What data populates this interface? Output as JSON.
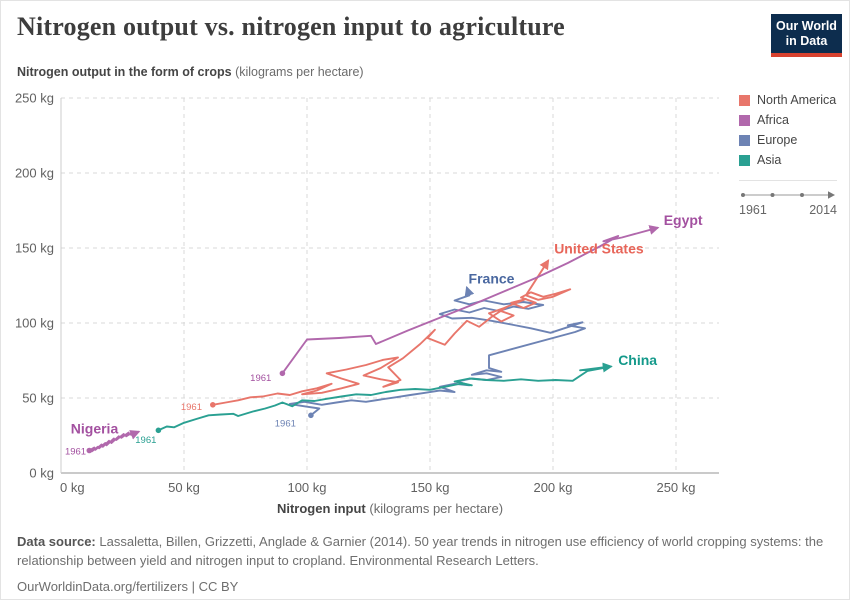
{
  "header": {
    "title": "Nitrogen output vs. nitrogen input to agriculture",
    "logo_line1": "Our World",
    "logo_line2": "in Data",
    "subtitle_bold": "Nitrogen output in the form of crops",
    "subtitle_normal": "(kilograms per hectare)"
  },
  "legend": {
    "items": [
      {
        "label": "North America",
        "color": "#e8766b"
      },
      {
        "label": "Africa",
        "color": "#b168ac"
      },
      {
        "label": "Europe",
        "color": "#6d83b4"
      },
      {
        "label": "Asia",
        "color": "#2aa092"
      }
    ],
    "timeline": {
      "start": "1961",
      "end": "2014"
    }
  },
  "chart_data": {
    "type": "line",
    "subtype": "connected-scatter",
    "title": "Nitrogen output vs. nitrogen input to agriculture",
    "xlabel_bold": "Nitrogen input",
    "xlabel_normal": "(kilograms per hectare)",
    "ylabel": "Nitrogen output in the form of crops (kilograms per hectare)",
    "xlim": [
      0,
      267
    ],
    "ylim": [
      0,
      253
    ],
    "grid": true,
    "time_range": [
      1961,
      2014
    ],
    "x_ticks": [
      {
        "v": 0,
        "label": "0 kg"
      },
      {
        "v": 50,
        "label": "50 kg"
      },
      {
        "v": 100,
        "label": "100 kg"
      },
      {
        "v": 150,
        "label": "150 kg"
      },
      {
        "v": 200,
        "label": "200 kg"
      },
      {
        "v": 250,
        "label": "250 kg"
      }
    ],
    "y_ticks": [
      {
        "v": 0,
        "label": "0 kg"
      },
      {
        "v": 50,
        "label": "50 kg"
      },
      {
        "v": 100,
        "label": "100 kg"
      },
      {
        "v": 150,
        "label": "150 kg"
      },
      {
        "v": 200,
        "label": "200 kg"
      },
      {
        "v": 250,
        "label": "250 kg"
      }
    ],
    "series": [
      {
        "name": "Nigeria",
        "region": "Africa",
        "color": "#b168ac",
        "points": [
          [
            11.5,
            15
          ],
          [
            13.5,
            17
          ],
          [
            12.5,
            14.5
          ],
          [
            15,
            17.5
          ],
          [
            14,
            15.5
          ],
          [
            16.5,
            19
          ],
          [
            15.5,
            16.5
          ],
          [
            18,
            20
          ],
          [
            17,
            17.5
          ],
          [
            19.5,
            21.5
          ],
          [
            18.5,
            18.5
          ],
          [
            21.5,
            23
          ],
          [
            20.5,
            20
          ],
          [
            23.5,
            24.5
          ],
          [
            22.5,
            22
          ],
          [
            25.5,
            26
          ],
          [
            24.5,
            23.5
          ],
          [
            27.5,
            27
          ],
          [
            26.5,
            24.5
          ],
          [
            29.5,
            27.5
          ],
          [
            28.5,
            25.5
          ],
          [
            31.5,
            27.5
          ]
        ]
      },
      {
        "name": "France",
        "region": "Europe",
        "color": "#6d83b4",
        "points": [
          [
            101.6,
            38.5
          ],
          [
            105,
            43
          ],
          [
            99,
            44.5
          ],
          [
            93,
            46
          ],
          [
            99,
            47.5
          ],
          [
            106,
            45.5
          ],
          [
            112,
            47
          ],
          [
            118,
            48.5
          ],
          [
            124,
            47.5
          ],
          [
            130,
            49
          ],
          [
            136,
            50.5
          ],
          [
            142,
            52
          ],
          [
            148,
            53.5
          ],
          [
            154,
            55
          ],
          [
            160,
            54
          ],
          [
            154,
            57.5
          ],
          [
            160,
            59.5
          ],
          [
            166,
            58.5
          ],
          [
            161,
            61
          ],
          [
            167,
            63
          ],
          [
            173,
            62
          ],
          [
            179,
            64
          ],
          [
            173,
            66.5
          ],
          [
            167,
            65.5
          ],
          [
            173,
            68.5
          ],
          [
            179,
            67.5
          ],
          [
            174,
            70
          ],
          [
            174,
            78.5
          ],
          [
            209,
            94
          ],
          [
            213,
            96.5
          ],
          [
            206,
            98.5
          ],
          [
            212,
            100.5
          ],
          [
            199,
            93.5
          ],
          [
            191,
            96.5
          ],
          [
            183,
            99
          ],
          [
            175,
            101.5
          ],
          [
            167,
            103.5
          ],
          [
            159,
            103
          ],
          [
            154,
            106
          ],
          [
            160,
            109
          ],
          [
            166,
            107
          ],
          [
            172,
            110
          ],
          [
            178,
            108
          ],
          [
            184,
            111
          ],
          [
            190,
            109.5
          ],
          [
            196,
            112
          ],
          [
            188,
            114
          ],
          [
            180,
            112.5
          ],
          [
            172,
            115
          ],
          [
            166,
            112.5
          ],
          [
            160,
            115
          ],
          [
            166,
            118.5
          ],
          [
            165,
            123.5
          ]
        ]
      },
      {
        "name": "China",
        "region": "Asia",
        "color": "#2aa092",
        "points": [
          [
            39.6,
            28.5
          ],
          [
            43,
            31
          ],
          [
            46,
            30.5
          ],
          [
            50,
            33.5
          ],
          [
            55,
            36
          ],
          [
            60,
            38.5
          ],
          [
            65,
            39
          ],
          [
            70,
            39.5
          ],
          [
            72,
            38
          ],
          [
            78,
            41
          ],
          [
            83,
            43
          ],
          [
            87,
            45
          ],
          [
            90,
            47
          ],
          [
            94,
            44.5
          ],
          [
            98,
            48.5
          ],
          [
            103,
            48
          ],
          [
            108,
            49.5
          ],
          [
            114,
            51
          ],
          [
            120,
            52.5
          ],
          [
            126,
            52
          ],
          [
            132,
            54
          ],
          [
            138,
            55.5
          ],
          [
            144,
            56
          ],
          [
            150,
            55.5
          ],
          [
            156,
            57.5
          ],
          [
            162,
            59.5
          ],
          [
            167,
            58.5
          ],
          [
            160,
            61
          ],
          [
            166,
            63
          ],
          [
            173,
            62
          ],
          [
            180,
            61.5
          ],
          [
            187,
            62.5
          ],
          [
            194,
            61.5
          ],
          [
            201,
            62
          ],
          [
            208,
            61.5
          ],
          [
            214,
            68
          ],
          [
            222,
            70.5
          ],
          [
            211,
            68.5
          ],
          [
            223.5,
            71
          ]
        ]
      },
      {
        "name": "United States",
        "region": "North America",
        "color": "#e8766b",
        "points": [
          [
            61.7,
            45.5
          ],
          [
            67,
            47
          ],
          [
            72,
            48.5
          ],
          [
            77,
            50.5
          ],
          [
            82,
            51
          ],
          [
            88,
            53
          ],
          [
            93,
            52
          ],
          [
            98,
            54.5
          ],
          [
            104,
            56.5
          ],
          [
            110,
            59.5
          ],
          [
            104,
            55
          ],
          [
            98,
            52.5
          ],
          [
            106,
            53.5
          ],
          [
            114,
            56.5
          ],
          [
            121,
            59.5
          ],
          [
            114,
            63
          ],
          [
            108,
            66.5
          ],
          [
            116,
            69
          ],
          [
            124,
            72
          ],
          [
            131,
            75.5
          ],
          [
            137,
            77
          ],
          [
            130,
            70
          ],
          [
            123,
            65
          ],
          [
            130,
            62.5
          ],
          [
            137,
            60.5
          ],
          [
            131,
            57.5
          ],
          [
            138,
            62
          ],
          [
            133,
            70.5
          ],
          [
            139,
            76.5
          ],
          [
            146,
            86
          ],
          [
            152,
            95.5
          ],
          [
            149,
            90
          ],
          [
            156,
            85.5
          ],
          [
            160,
            93
          ],
          [
            165,
            101.5
          ],
          [
            170,
            97.5
          ],
          [
            175,
            104
          ],
          [
            181,
            110.5
          ],
          [
            174,
            106.5
          ],
          [
            179,
            101
          ],
          [
            184,
            105
          ],
          [
            178,
            108.5
          ],
          [
            183,
            112
          ],
          [
            189,
            116
          ],
          [
            183,
            113.5
          ],
          [
            188,
            110
          ],
          [
            193,
            113.5
          ],
          [
            187,
            117
          ],
          [
            191,
            120.5
          ],
          [
            196,
            117.5
          ],
          [
            201,
            119.5
          ],
          [
            207,
            122.5
          ],
          [
            200,
            117.5
          ],
          [
            194,
            115.5
          ],
          [
            189,
            118.5
          ],
          [
            198,
            141.5
          ]
        ]
      },
      {
        "name": "Egypt",
        "region": "Africa",
        "color": "#b168ac",
        "points": [
          [
            90,
            66.5
          ],
          [
            100,
            89
          ],
          [
            113,
            90
          ],
          [
            126,
            91.5
          ],
          [
            128,
            86
          ],
          [
            141,
            95
          ],
          [
            154,
            103.5
          ],
          [
            167,
            112
          ],
          [
            180,
            121
          ],
          [
            193,
            130
          ],
          [
            206,
            140
          ],
          [
            219,
            151
          ],
          [
            226.5,
            158
          ],
          [
            220.5,
            154.5
          ],
          [
            228,
            157
          ],
          [
            242.5,
            163.5
          ]
        ]
      }
    ],
    "annotations": [
      {
        "name": "nigeria",
        "text": "Nigeria",
        "x": 13.6,
        "y": 26.3,
        "anchor": "middle",
        "bold": true,
        "size": 14,
        "color": "#a351a0"
      },
      {
        "name": "nigeria-1961",
        "text": "1961",
        "x": 10.2,
        "y": 12.5,
        "anchor": "end",
        "bold": false,
        "size": 9.5,
        "color": "#a351a0"
      },
      {
        "name": "china-1961",
        "text": "1961",
        "x": 38.8,
        "y": 20,
        "anchor": "end",
        "bold": false,
        "size": 9.5,
        "color": "#2aa092"
      },
      {
        "name": "united-states-1961",
        "text": "1961",
        "x": 57.3,
        "y": 42,
        "anchor": "end",
        "bold": false,
        "size": 9.5,
        "color": "#e8766b"
      },
      {
        "name": "france-1961",
        "text": "1961",
        "x": 95.5,
        "y": 31,
        "anchor": "end",
        "bold": false,
        "size": 9.5,
        "color": "#6d83b4"
      },
      {
        "name": "egypt-1961",
        "text": "1961",
        "x": 85.5,
        "y": 61.5,
        "anchor": "end",
        "bold": false,
        "size": 9.5,
        "color": "#a351a0"
      },
      {
        "name": "france",
        "text": "France",
        "x": 175,
        "y": 126.5,
        "anchor": "middle",
        "bold": true,
        "size": 14,
        "color": "#4a68a0"
      },
      {
        "name": "united-states",
        "text": "United States",
        "x": 200.5,
        "y": 146.5,
        "anchor": "start",
        "bold": true,
        "size": 14,
        "color": "#e8665a"
      },
      {
        "name": "egypt",
        "text": "Egypt",
        "x": 245,
        "y": 165.5,
        "anchor": "start",
        "bold": true,
        "size": 14,
        "color": "#a351a0"
      },
      {
        "name": "china",
        "text": "China",
        "x": 226.5,
        "y": 72,
        "anchor": "start",
        "bold": true,
        "size": 14,
        "color": "#13998a"
      }
    ]
  },
  "footer": {
    "source_label": "Data source:",
    "source_text": "Lassaletta, Billen, Grizzetti, Anglade & Garnier (2014). 50 year trends in nitrogen use efficiency of world cropping systems: the relationship between yield and nitrogen input to cropland. Environmental Research Letters.",
    "link": "OurWorldinData.org/fertilizers | CC BY"
  }
}
